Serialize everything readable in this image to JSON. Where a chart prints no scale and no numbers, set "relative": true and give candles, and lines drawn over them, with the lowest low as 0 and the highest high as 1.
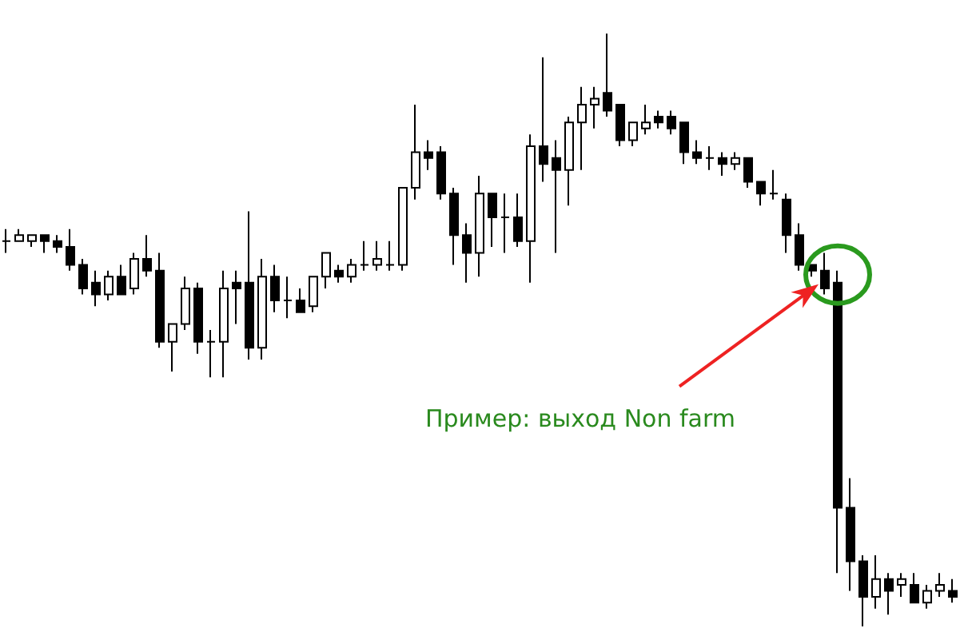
{
  "chart_data": {
    "type": "candlestick",
    "relative": true,
    "color": "#000000",
    "categories": [
      null,
      null,
      null,
      null,
      null,
      null,
      null,
      null,
      null,
      null,
      null,
      null,
      null,
      null,
      null,
      null,
      null,
      null,
      null,
      null,
      null,
      null,
      null,
      null,
      null,
      null,
      null,
      null,
      null,
      null,
      null,
      null,
      null,
      null,
      null,
      null,
      null,
      null,
      null,
      null,
      null,
      null,
      null,
      null,
      null,
      null,
      null,
      null,
      null,
      null,
      null,
      null,
      null,
      null,
      null,
      null,
      null,
      null,
      null,
      null,
      null,
      null,
      null,
      null,
      null,
      null,
      null,
      null,
      null,
      null,
      null,
      null,
      null,
      null,
      null
    ],
    "ohlc": [
      [
        0.65,
        0.67,
        0.63,
        0.65
      ],
      [
        0.65,
        0.67,
        0.65,
        0.66
      ],
      [
        0.65,
        0.66,
        0.64,
        0.66
      ],
      [
        0.66,
        0.66,
        0.63,
        0.65
      ],
      [
        0.65,
        0.66,
        0.63,
        0.64
      ],
      [
        0.64,
        0.67,
        0.6,
        0.61
      ],
      [
        0.61,
        0.62,
        0.56,
        0.57
      ],
      [
        0.58,
        0.6,
        0.54,
        0.56
      ],
      [
        0.56,
        0.6,
        0.55,
        0.59
      ],
      [
        0.59,
        0.61,
        0.56,
        0.56
      ],
      [
        0.57,
        0.63,
        0.56,
        0.62
      ],
      [
        0.62,
        0.66,
        0.59,
        0.6
      ],
      [
        0.6,
        0.63,
        0.47,
        0.48
      ],
      [
        0.48,
        0.51,
        0.43,
        0.51
      ],
      [
        0.51,
        0.59,
        0.5,
        0.57
      ],
      [
        0.57,
        0.58,
        0.46,
        0.48
      ],
      [
        0.48,
        0.5,
        0.42,
        0.48
      ],
      [
        0.48,
        0.6,
        0.42,
        0.57
      ],
      [
        0.58,
        0.6,
        0.51,
        0.57
      ],
      [
        0.58,
        0.7,
        0.45,
        0.47
      ],
      [
        0.47,
        0.62,
        0.45,
        0.59
      ],
      [
        0.59,
        0.61,
        0.53,
        0.55
      ],
      [
        0.55,
        0.59,
        0.52,
        0.55
      ],
      [
        0.55,
        0.57,
        0.53,
        0.53
      ],
      [
        0.54,
        0.59,
        0.53,
        0.59
      ],
      [
        0.59,
        0.63,
        0.57,
        0.63
      ],
      [
        0.6,
        0.61,
        0.58,
        0.59
      ],
      [
        0.59,
        0.62,
        0.58,
        0.61
      ],
      [
        0.61,
        0.65,
        0.6,
        0.61
      ],
      [
        0.61,
        0.65,
        0.6,
        0.62
      ],
      [
        0.61,
        0.65,
        0.6,
        0.61
      ],
      [
        0.61,
        0.74,
        0.6,
        0.74
      ],
      [
        0.74,
        0.88,
        0.72,
        0.8
      ],
      [
        0.8,
        0.82,
        0.77,
        0.79
      ],
      [
        0.8,
        0.81,
        0.72,
        0.73
      ],
      [
        0.73,
        0.74,
        0.61,
        0.66
      ],
      [
        0.66,
        0.68,
        0.58,
        0.63
      ],
      [
        0.63,
        0.76,
        0.59,
        0.73
      ],
      [
        0.73,
        0.73,
        0.64,
        0.69
      ],
      [
        0.69,
        0.73,
        0.63,
        0.69
      ],
      [
        0.69,
        0.73,
        0.64,
        0.65
      ],
      [
        0.65,
        0.83,
        0.58,
        0.81
      ],
      [
        0.81,
        0.96,
        0.75,
        0.78
      ],
      [
        0.79,
        0.82,
        0.63,
        0.77
      ],
      [
        0.77,
        0.86,
        0.71,
        0.85
      ],
      [
        0.85,
        0.91,
        0.77,
        0.88
      ],
      [
        0.88,
        0.91,
        0.84,
        0.89
      ],
      [
        0.9,
        1,
        0.86,
        0.87
      ],
      [
        0.88,
        0.88,
        0.81,
        0.82
      ],
      [
        0.82,
        0.85,
        0.81,
        0.85
      ],
      [
        0.84,
        0.88,
        0.83,
        0.85
      ],
      [
        0.86,
        0.87,
        0.84,
        0.85
      ],
      [
        0.86,
        0.87,
        0.83,
        0.84
      ],
      [
        0.85,
        0.85,
        0.78,
        0.8
      ],
      [
        0.8,
        0.82,
        0.78,
        0.79
      ],
      [
        0.79,
        0.81,
        0.77,
        0.79
      ],
      [
        0.79,
        0.8,
        0.76,
        0.78
      ],
      [
        0.78,
        0.8,
        0.77,
        0.79
      ],
      [
        0.79,
        0.79,
        0.74,
        0.75
      ],
      [
        0.75,
        0.75,
        0.71,
        0.73
      ],
      [
        0.73,
        0.77,
        0.72,
        0.73
      ],
      [
        0.72,
        0.73,
        0.63,
        0.66
      ],
      [
        0.66,
        0.68,
        0.6,
        0.61
      ],
      [
        0.61,
        0.61,
        0.59,
        0.6
      ],
      [
        0.6,
        0.63,
        0.56,
        0.57
      ],
      [
        0.58,
        0.6,
        0.09,
        0.2
      ],
      [
        0.2,
        0.25,
        0.06,
        0.11
      ],
      [
        0.11,
        0.12,
        0,
        0.05
      ],
      [
        0.05,
        0.12,
        0.03,
        0.08
      ],
      [
        0.08,
        0.09,
        0.02,
        0.06
      ],
      [
        0.07,
        0.09,
        0.05,
        0.08
      ],
      [
        0.07,
        0.09,
        0.04,
        0.04
      ],
      [
        0.04,
        0.07,
        0.03,
        0.06
      ],
      [
        0.06,
        0.09,
        0.05,
        0.07
      ],
      [
        0.06,
        0.08,
        0.04,
        0.05
      ]
    ],
    "annotations": [
      "Пример: выход Non farm"
    ]
  }
}
